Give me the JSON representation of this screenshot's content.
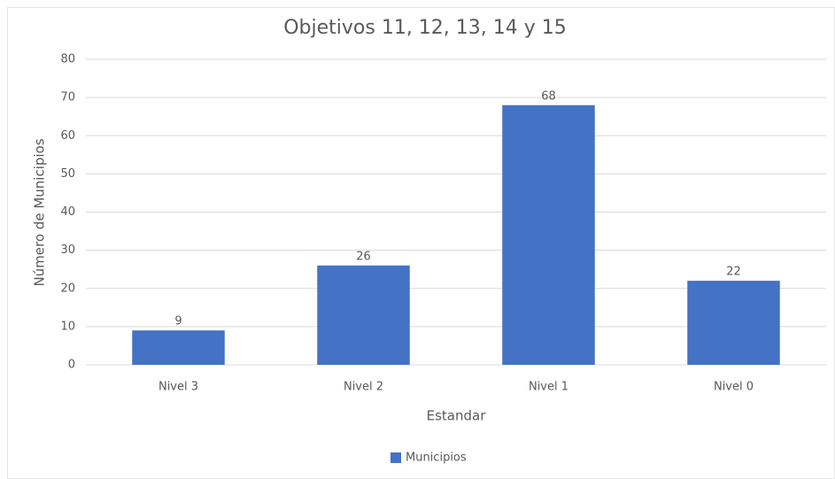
{
  "chart_data": {
    "type": "bar",
    "title": "Objetivos 11, 12, 13, 14 y 15",
    "x_label": "Estandar",
    "y_label": "Número de Municipios",
    "categories": [
      "Nivel 3",
      "Nivel 2",
      "Nivel 1",
      "Nivel 0"
    ],
    "series": [
      {
        "name": "Municipios",
        "color": "#4472c4",
        "values": [
          9,
          26,
          68,
          22
        ]
      }
    ],
    "ylim": [
      0,
      80
    ],
    "yticks": [
      0,
      10,
      20,
      30,
      40,
      50,
      60,
      70,
      80
    ],
    "grid": true,
    "legend": "bottom"
  }
}
